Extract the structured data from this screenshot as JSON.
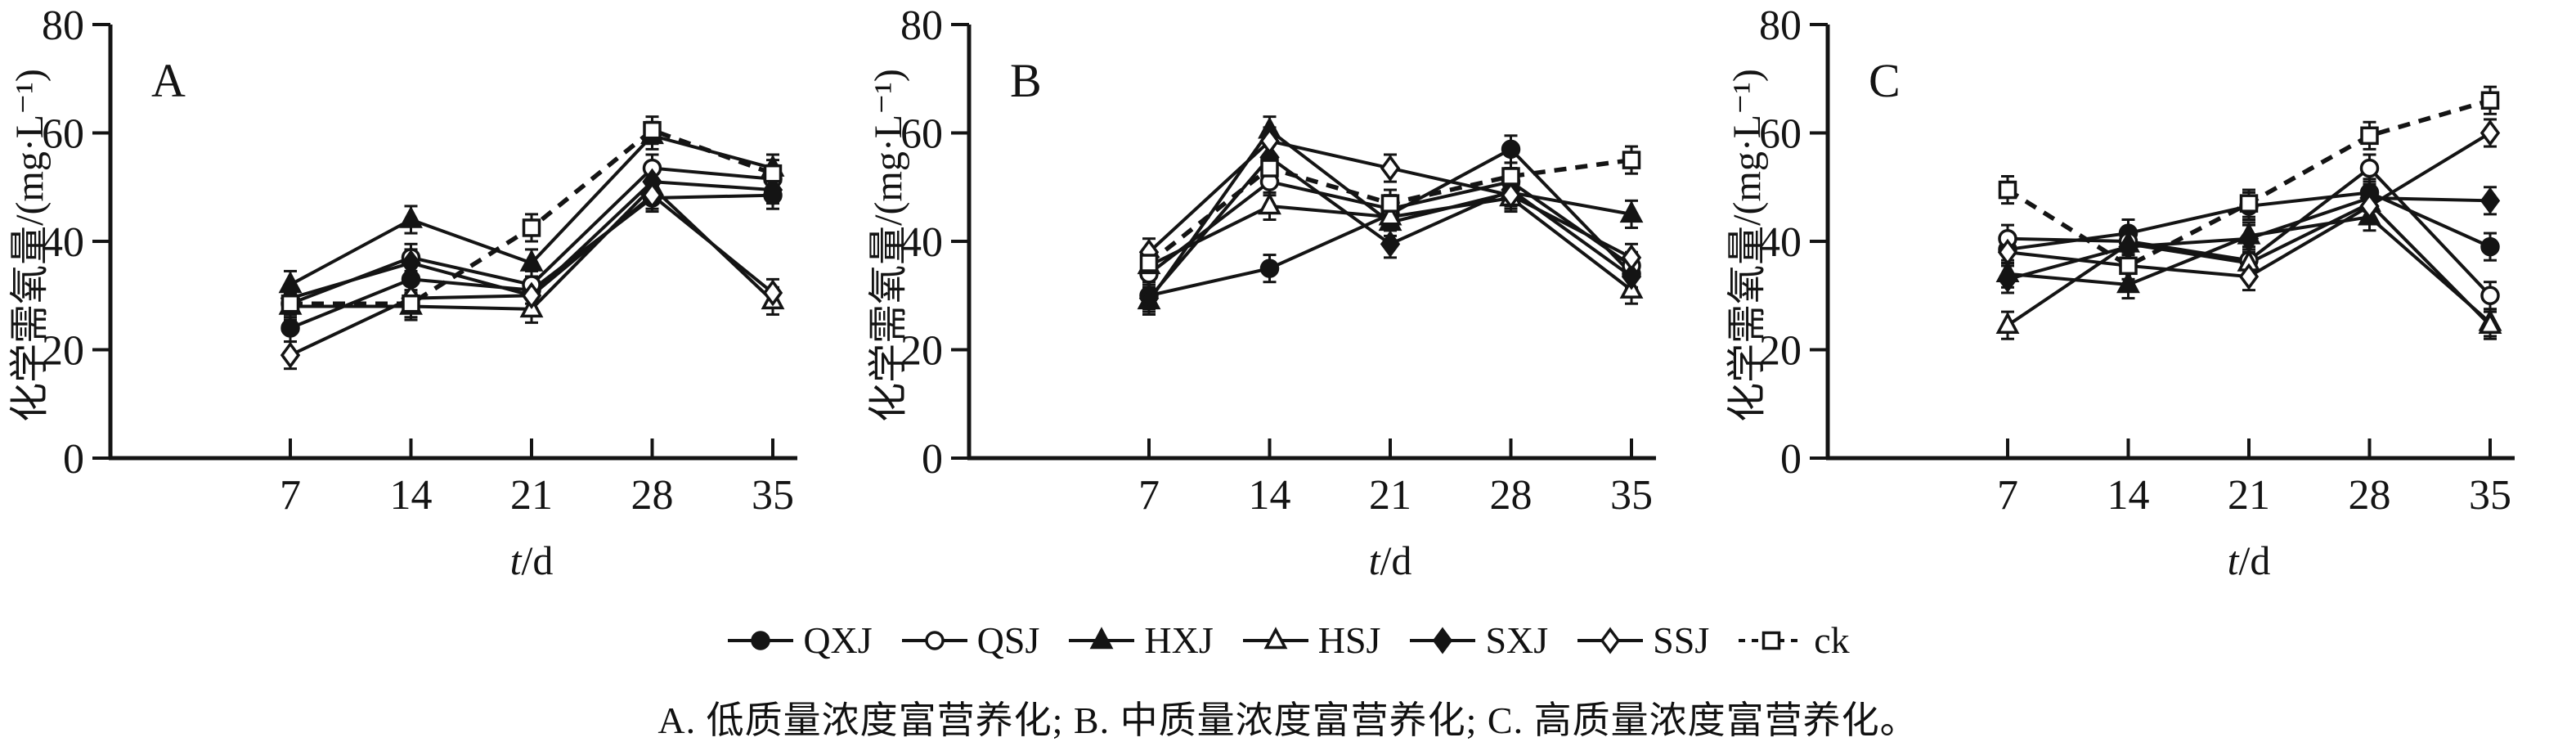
{
  "figure": {
    "y_axis_label": "化学需氧量/(mg·L⁻¹)",
    "x_axis_label_prefix": "t",
    "x_axis_label_suffix": "/d",
    "caption": "A. 低质量浓度富营养化; B. 中质量浓度富营养化; C. 高质量浓度富营养化。",
    "ink_color": "#141414",
    "background": "#ffffff"
  },
  "legend": [
    {
      "label": "QXJ",
      "marker": "circle",
      "filled": true,
      "line": "solid"
    },
    {
      "label": "QSJ",
      "marker": "circle",
      "filled": false,
      "line": "solid"
    },
    {
      "label": "HXJ",
      "marker": "triangle",
      "filled": true,
      "line": "solid"
    },
    {
      "label": "HSJ",
      "marker": "triangle",
      "filled": false,
      "line": "solid"
    },
    {
      "label": "SXJ",
      "marker": "diamond",
      "filled": true,
      "line": "solid"
    },
    {
      "label": "SSJ",
      "marker": "diamond",
      "filled": false,
      "line": "solid"
    },
    {
      "label": "ck",
      "marker": "square",
      "filled": false,
      "line": "dashed"
    }
  ],
  "chart_data": [
    {
      "type": "line",
      "panel_label": "A",
      "panel_title": "低质量浓度富营养化",
      "xlabel": "t/d",
      "ylabel": "化学需氧量/(mg·L⁻¹)",
      "x": [
        7,
        14,
        21,
        28,
        35
      ],
      "ylim": [
        0,
        80
      ],
      "yticks": [
        0,
        20,
        40,
        60,
        80
      ],
      "error_bar": 2.5,
      "legend_position": "below-figure",
      "grid": false,
      "series": [
        {
          "name": "QXJ",
          "values": [
            24,
            33,
            31,
            48,
            48.5
          ]
        },
        {
          "name": "QSJ",
          "values": [
            28.5,
            37,
            32,
            53.5,
            51.5
          ]
        },
        {
          "name": "HXJ",
          "values": [
            32,
            44,
            36,
            59.5,
            53.5
          ]
        },
        {
          "name": "HSJ",
          "values": [
            28,
            28,
            27.5,
            50,
            29
          ]
        },
        {
          "name": "SXJ",
          "values": [
            29.5,
            36,
            30,
            51,
            49.5
          ]
        },
        {
          "name": "SSJ",
          "values": [
            19,
            29.5,
            30,
            48.5,
            30.5
          ]
        },
        {
          "name": "ck",
          "values": [
            28.5,
            28.5,
            42.5,
            60.5,
            52.5
          ]
        }
      ]
    },
    {
      "type": "line",
      "panel_label": "B",
      "panel_title": "中质量浓度富营养化",
      "xlabel": "t/d",
      "ylabel": "化学需氧量/(mg·L⁻¹)",
      "x": [
        7,
        14,
        21,
        28,
        35
      ],
      "ylim": [
        0,
        80
      ],
      "yticks": [
        0,
        20,
        40,
        60,
        80
      ],
      "error_bar": 2.5,
      "legend_position": "below-figure",
      "grid": false,
      "series": [
        {
          "name": "QXJ",
          "values": [
            30,
            35,
            45,
            57,
            34
          ]
        },
        {
          "name": "QSJ",
          "values": [
            34,
            51,
            46,
            51,
            35.5
          ]
        },
        {
          "name": "HXJ",
          "values": [
            29,
            60.5,
            43.5,
            49,
            45
          ]
        },
        {
          "name": "HSJ",
          "values": [
            35.5,
            46.5,
            44.5,
            48,
            31
          ]
        },
        {
          "name": "SXJ",
          "values": [
            29.5,
            55.5,
            39.5,
            49.5,
            33.5
          ]
        },
        {
          "name": "SSJ",
          "values": [
            38,
            58.5,
            53.5,
            48.5,
            37
          ]
        },
        {
          "name": "ck",
          "values": [
            36,
            53.5,
            47,
            52,
            55
          ]
        }
      ]
    },
    {
      "type": "line",
      "panel_label": "C",
      "panel_title": "高质量浓度富营养化",
      "xlabel": "t/d",
      "ylabel": "化学需氧量/(mg·L⁻¹)",
      "x": [
        7,
        14,
        21,
        28,
        35
      ],
      "ylim": [
        0,
        80
      ],
      "yticks": [
        0,
        20,
        40,
        60,
        80
      ],
      "error_bar": 2.5,
      "legend_position": "below-figure",
      "grid": false,
      "series": [
        {
          "name": "QXJ",
          "values": [
            38.5,
            41.5,
            46.5,
            49,
            39
          ]
        },
        {
          "name": "QSJ",
          "values": [
            40.5,
            40,
            36.5,
            53.5,
            30
          ]
        },
        {
          "name": "HXJ",
          "values": [
            34,
            32,
            41,
            44.5,
            25
          ]
        },
        {
          "name": "HSJ",
          "values": [
            24.5,
            39.5,
            36,
            47,
            24.5
          ]
        },
        {
          "name": "SXJ",
          "values": [
            33,
            39,
            40.5,
            48,
            47.5
          ]
        },
        {
          "name": "SSJ",
          "values": [
            38,
            35.5,
            33.5,
            46.5,
            60
          ]
        },
        {
          "name": "ck",
          "values": [
            49.5,
            35.5,
            47,
            59.5,
            66
          ]
        }
      ]
    }
  ]
}
